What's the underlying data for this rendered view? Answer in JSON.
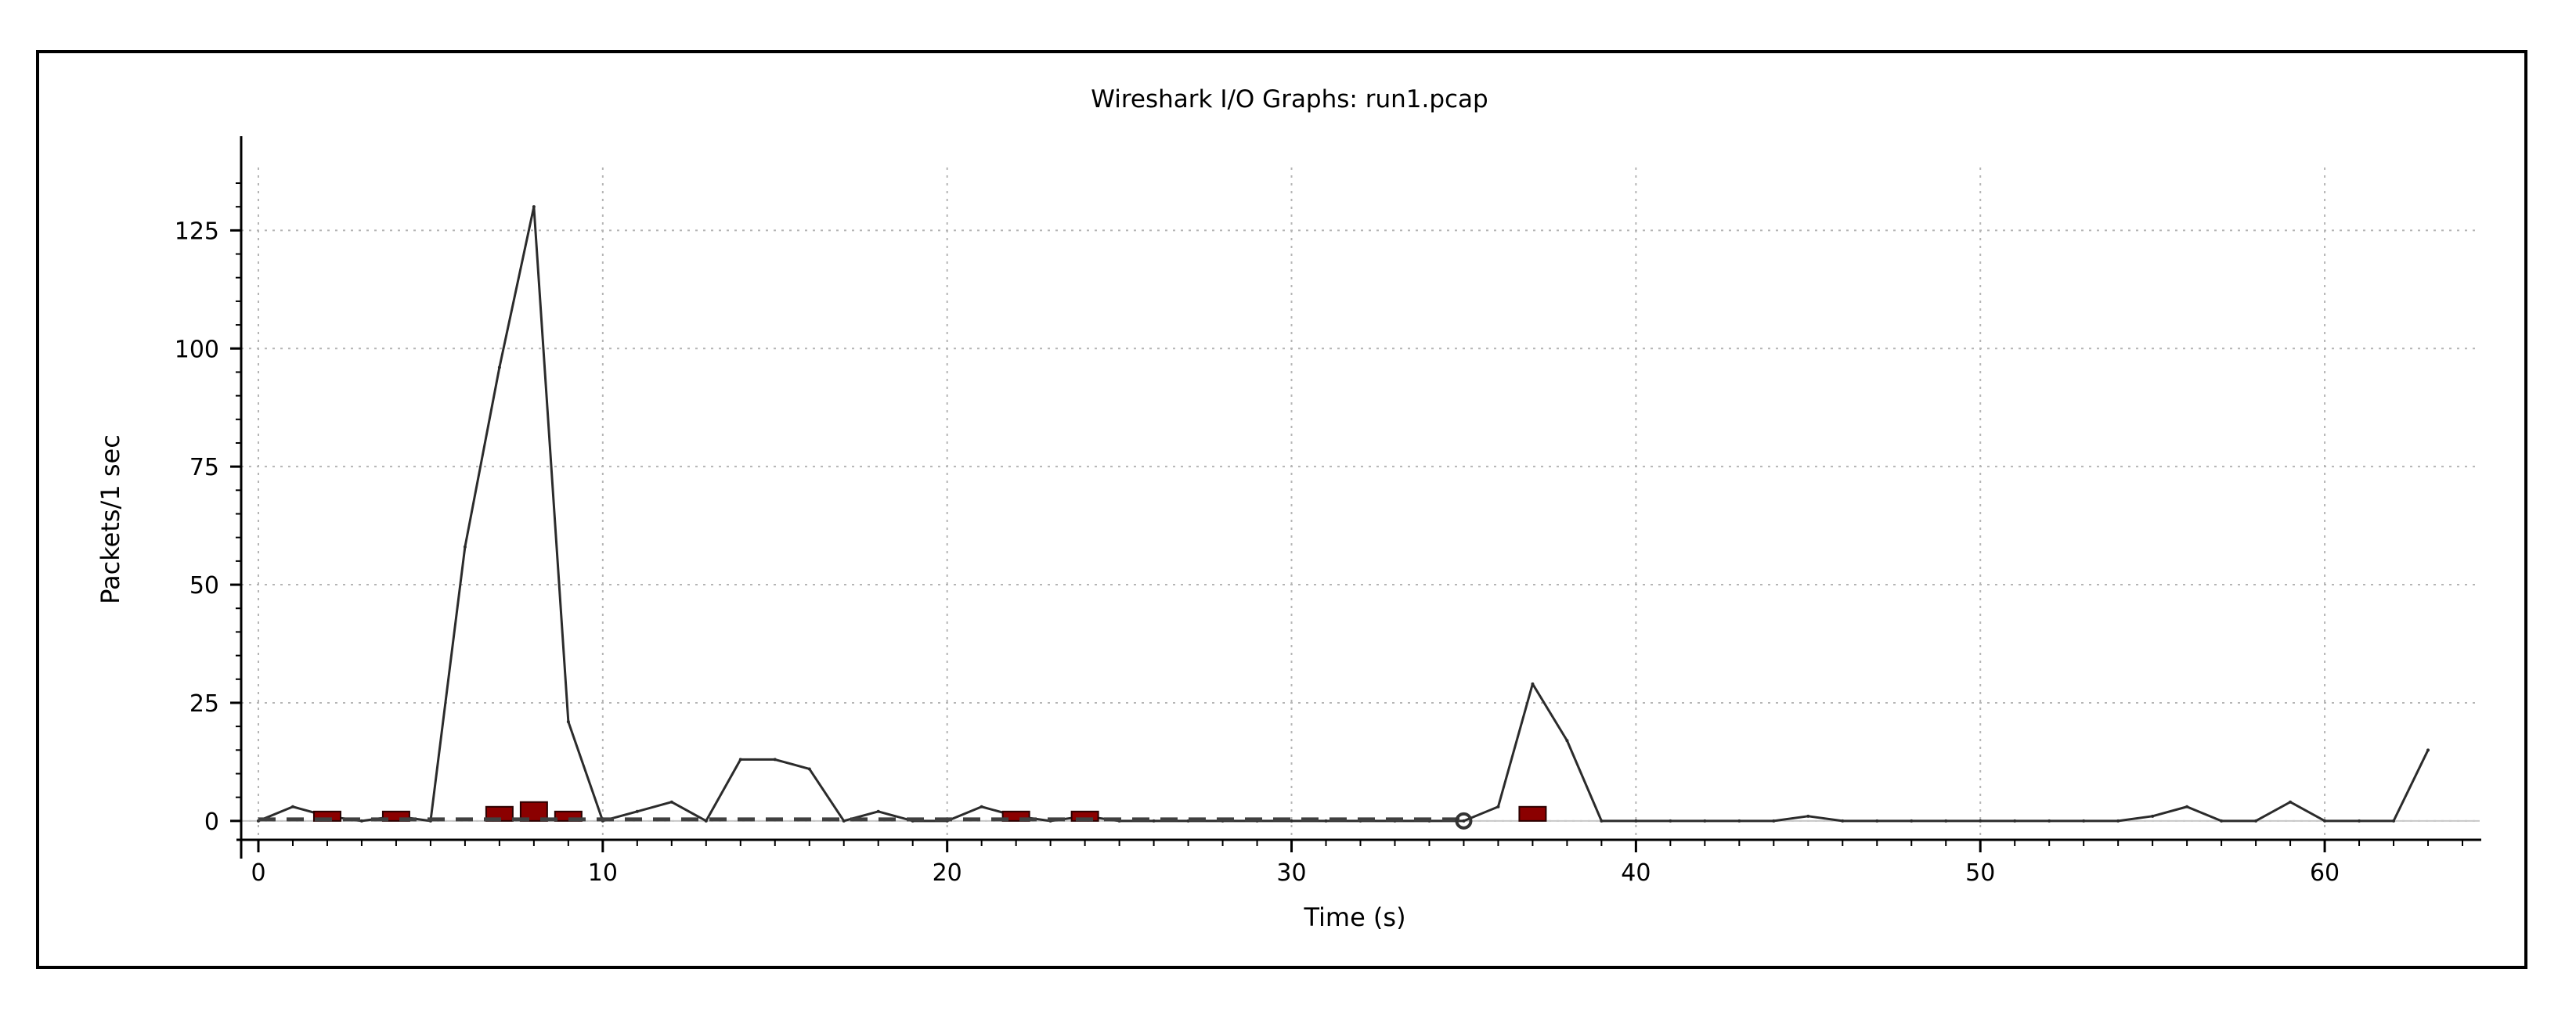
{
  "window": {
    "title": "Wireshark I/O Graphs: run1.pcap"
  },
  "colors": {
    "line": "#2b2b2b",
    "bar": "#8b0000",
    "grid": "#b5b5b5",
    "axis": "#000000",
    "dash": "#404040"
  },
  "chart_data": {
    "type": "line",
    "title": "Wireshark I/O Graphs: run1.pcap",
    "xlabel": "Time (s)",
    "ylabel": "Packets/1 sec",
    "xlim": [
      -0.5,
      64.5
    ],
    "ylim": [
      -4,
      135
    ],
    "xticks": [
      0,
      10,
      20,
      30,
      40,
      50,
      60
    ],
    "yticks": [
      0,
      25,
      50,
      75,
      100,
      125
    ],
    "grid": true,
    "series": [
      {
        "style": "line",
        "x": [
          0,
          1,
          2,
          3,
          4,
          5,
          6,
          7,
          8,
          9,
          10,
          11,
          12,
          13,
          14,
          15,
          16,
          17,
          18,
          19,
          20,
          21,
          22,
          23,
          24,
          25,
          26,
          27,
          28,
          29,
          30,
          31,
          32,
          33,
          34,
          35,
          36,
          37,
          38,
          39,
          40,
          41,
          42,
          43,
          44,
          45,
          46,
          47,
          48,
          49,
          50,
          51,
          52,
          53,
          54,
          55,
          56,
          57,
          58,
          59,
          60,
          61,
          62,
          63
        ],
        "values": [
          0,
          3,
          1,
          0,
          1,
          0,
          58,
          96,
          130,
          21,
          0,
          2,
          4,
          0,
          13,
          13,
          11,
          0,
          2,
          0,
          0,
          3,
          1,
          0,
          1,
          0,
          0,
          0,
          0,
          0,
          0,
          0,
          0,
          0,
          0,
          0,
          3,
          29,
          17,
          0,
          0,
          0,
          0,
          0,
          0,
          1,
          0,
          0,
          0,
          0,
          0,
          0,
          0,
          0,
          0,
          1,
          3,
          0,
          0,
          4,
          0,
          0,
          0,
          15
        ]
      },
      {
        "style": "bar",
        "x": [
          2,
          4,
          7,
          8,
          9,
          22,
          24,
          37
        ],
        "values": [
          1,
          1,
          2,
          3,
          1,
          1,
          1,
          2
        ]
      },
      {
        "style": "dashed-line",
        "x": [
          0,
          35
        ],
        "values": [
          0,
          0
        ]
      },
      {
        "style": "marker",
        "x": [
          35
        ],
        "values": [
          0
        ]
      }
    ]
  }
}
